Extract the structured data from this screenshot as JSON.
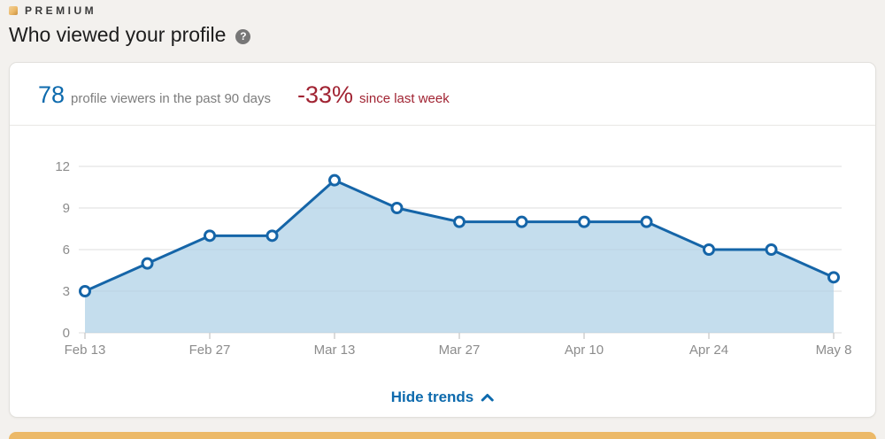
{
  "colors": {
    "accent_blue": "#0d6aad",
    "negative_red": "#a12433",
    "line_blue": "#1565a8",
    "area_fill": "rgba(176, 209, 231, 0.75)",
    "premium_gold": "#ecb968",
    "grid_gray": "#e4e4e4",
    "tick_gray": "#c9c9c9",
    "axis_text_gray": "#8c8c8c"
  },
  "header": {
    "premium_label": "PREMIUM",
    "title": "Who viewed your profile",
    "help_icon_glyph": "?"
  },
  "stats": {
    "count": "78",
    "count_label": "profile viewers in the past 90 days",
    "delta": "-33%",
    "delta_label": "since last week"
  },
  "footer": {
    "hide_trends_label": "Hide trends"
  },
  "chart_data": {
    "type": "area",
    "values": [
      3,
      5,
      7,
      7,
      11,
      9,
      8,
      8,
      8,
      8,
      6,
      6,
      4
    ],
    "x_ticks": [
      {
        "index": 0,
        "label": "Feb 13"
      },
      {
        "index": 2,
        "label": "Feb 27"
      },
      {
        "index": 4,
        "label": "Mar 13"
      },
      {
        "index": 6,
        "label": "Mar 27"
      },
      {
        "index": 8,
        "label": "Apr 10"
      },
      {
        "index": 10,
        "label": "Apr 24"
      },
      {
        "index": 12,
        "label": "May 8"
      }
    ],
    "y_ticks": [
      0,
      3,
      6,
      9,
      12
    ],
    "ylim": [
      0,
      12
    ],
    "grid": true,
    "legend": false
  }
}
